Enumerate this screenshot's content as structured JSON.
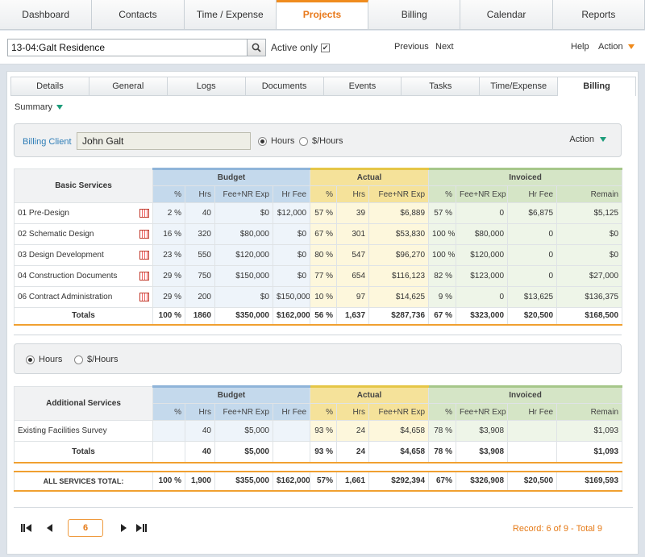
{
  "nav": {
    "tabs": [
      "Dashboard",
      "Contacts",
      "Time / Expense",
      "Projects",
      "Billing",
      "Calendar",
      "Reports"
    ],
    "active": "Projects"
  },
  "searchbar": {
    "value": "13-04:Galt Residence",
    "active_only_label": "Active only",
    "previous": "Previous",
    "next": "Next",
    "help": "Help",
    "action": "Action"
  },
  "subtabs": {
    "items": [
      "Details",
      "General",
      "Logs",
      "Documents",
      "Events",
      "Tasks",
      "Time/Expense",
      "Billing"
    ],
    "active": "Billing"
  },
  "summary_label": "Summary",
  "billing_client": {
    "label": "Billing Client",
    "value": "John Galt",
    "opt_hours": "Hours",
    "opt_dollars": "$/Hours",
    "action": "Action"
  },
  "basic": {
    "title": "Basic Services",
    "groups": {
      "budget": "Budget",
      "actual": "Actual",
      "invoiced": "Invoiced"
    },
    "subheaders": [
      "%",
      "Hrs",
      "Fee+NR Exp",
      "Hr Fee",
      "%",
      "Hrs",
      "Fee+NR Exp",
      "%",
      "Fee+NR Exp",
      "Hr Fee",
      "Remain"
    ],
    "rows": [
      {
        "name": "01 Pre-Design",
        "cells": [
          "2 %",
          "40",
          "$0",
          "$12,000",
          "57 %",
          "39",
          "$6,889",
          "57 %",
          "0",
          "$6,875",
          "$5,125"
        ]
      },
      {
        "name": "02 Schematic Design",
        "cells": [
          "16 %",
          "320",
          "$80,000",
          "$0",
          "67 %",
          "301",
          "$53,830",
          "100 %",
          "$80,000",
          "0",
          "$0"
        ]
      },
      {
        "name": "03 Design Development",
        "cells": [
          "23 %",
          "550",
          "$120,000",
          "$0",
          "80 %",
          "547",
          "$96,270",
          "100 %",
          "$120,000",
          "0",
          "$0"
        ]
      },
      {
        "name": "04 Construction Documents",
        "cells": [
          "29 %",
          "750",
          "$150,000",
          "$0",
          "77 %",
          "654",
          "$116,123",
          "82 %",
          "$123,000",
          "0",
          "$27,000"
        ]
      },
      {
        "name": "06 Contract Administration",
        "cells": [
          "29 %",
          "200",
          "$0",
          "$150,000",
          "10 %",
          "97",
          "$14,625",
          "9 %",
          "0",
          "$13,625",
          "$136,375"
        ]
      }
    ],
    "totals": {
      "label": "Totals",
      "cells": [
        "100 %",
        "1860",
        "$350,000",
        "$162,000",
        "56 %",
        "1,637",
        "$287,736",
        "67 %",
        "$323,000",
        "$20,500",
        "$168,500"
      ]
    }
  },
  "units": {
    "opt_hours": "Hours",
    "opt_dollars": "$/Hours"
  },
  "additional": {
    "title": "Additional Services",
    "groups": {
      "budget": "Budget",
      "actual": "Actual",
      "invoiced": "Invoiced"
    },
    "subheaders": [
      "%",
      "Hrs",
      "Fee+NR Exp",
      "Hr Fee",
      "%",
      "Hrs",
      "Fee+NR Exp",
      "%",
      "Fee+NR Exp",
      "Hr Fee",
      "Remain"
    ],
    "rows": [
      {
        "name": "Existing Facilities Survey",
        "cells": [
          "",
          "40",
          "$5,000",
          "",
          "93 %",
          "24",
          "$4,658",
          "78 %",
          "$3,908",
          "",
          "$1,093"
        ]
      }
    ],
    "totals": {
      "label": "Totals",
      "cells": [
        "",
        "40",
        "$5,000",
        "",
        "93 %",
        "24",
        "$4,658",
        "78 %",
        "$3,908",
        "",
        "$1,093"
      ]
    },
    "grand": {
      "label": "ALL SERVICES TOTAL:",
      "cells": [
        "100 %",
        "1,900",
        "$355,000",
        "$162,000",
        "57%",
        "1,661",
        "$292,394",
        "67%",
        "$326,908",
        "$20,500",
        "$169,593"
      ]
    }
  },
  "pager": {
    "current": "6",
    "record_text": "Record: 6 of 9 - Total 9"
  }
}
